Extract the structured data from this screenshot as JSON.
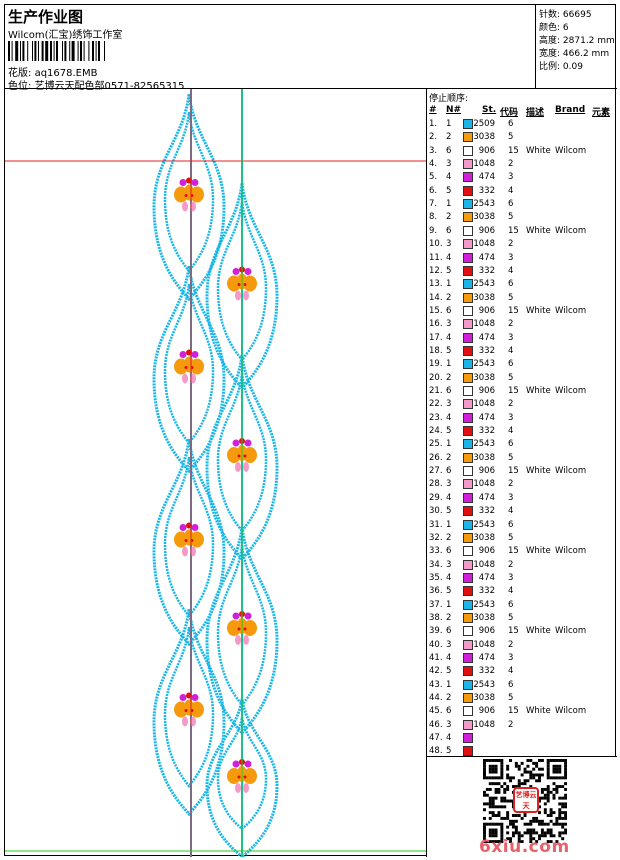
{
  "header": {
    "title": "生产作业图",
    "studio": "Wilcom(汇宝)绣饰工作室",
    "file_label": "花版:",
    "file_name": "aq1678.EMB",
    "color_label": "色位:",
    "color_text": "艺博云天配色部0571-82565315"
  },
  "stats": [
    {
      "label": "针数:",
      "value": "66695"
    },
    {
      "label": "颜色:",
      "value": "6"
    },
    {
      "label": "高度:",
      "value": "2871.2 mm"
    },
    {
      "label": "宽度:",
      "value": "466.2 mm"
    },
    {
      "label": "比例:",
      "value": "0.09"
    }
  ],
  "sequence": {
    "title": "停止顺序:",
    "headers": [
      "#",
      "N#",
      "St.",
      "代码",
      "描述",
      "Brand",
      "元素"
    ],
    "rows": [
      {
        "idx": "1.",
        "needle": "1",
        "code": "2509",
        "dm": "6",
        "desc": "",
        "brand": "",
        "color": "#1ab6e8"
      },
      {
        "idx": "2.",
        "needle": "2",
        "code": "3038",
        "dm": "5",
        "desc": "",
        "brand": "",
        "color": "#f59a0c"
      },
      {
        "idx": "3.",
        "needle": "6",
        "code": "906",
        "dm": "15",
        "desc": "White",
        "brand": "Wilcom",
        "color": "#ffffff"
      },
      {
        "idx": "4.",
        "needle": "3",
        "code": "1048",
        "dm": "2",
        "desc": "",
        "brand": "",
        "color": "#f49ac8"
      },
      {
        "idx": "5.",
        "needle": "4",
        "code": "474",
        "dm": "3",
        "desc": "",
        "brand": "",
        "color": "#d21fd8"
      },
      {
        "idx": "6.",
        "needle": "5",
        "code": "332",
        "dm": "4",
        "desc": "",
        "brand": "",
        "color": "#e01010"
      },
      {
        "idx": "7.",
        "needle": "1",
        "code": "2543",
        "dm": "6",
        "desc": "",
        "brand": "",
        "color": "#1ab6e8"
      },
      {
        "idx": "8.",
        "needle": "2",
        "code": "3038",
        "dm": "5",
        "desc": "",
        "brand": "",
        "color": "#f59a0c"
      },
      {
        "idx": "9.",
        "needle": "6",
        "code": "906",
        "dm": "15",
        "desc": "White",
        "brand": "Wilcom",
        "color": "#ffffff"
      },
      {
        "idx": "10.",
        "needle": "3",
        "code": "1048",
        "dm": "2",
        "desc": "",
        "brand": "",
        "color": "#f49ac8"
      },
      {
        "idx": "11.",
        "needle": "4",
        "code": "474",
        "dm": "3",
        "desc": "",
        "brand": "",
        "color": "#d21fd8"
      },
      {
        "idx": "12.",
        "needle": "5",
        "code": "332",
        "dm": "4",
        "desc": "",
        "brand": "",
        "color": "#e01010"
      },
      {
        "idx": "13.",
        "needle": "1",
        "code": "2543",
        "dm": "6",
        "desc": "",
        "brand": "",
        "color": "#1ab6e8"
      },
      {
        "idx": "14.",
        "needle": "2",
        "code": "3038",
        "dm": "5",
        "desc": "",
        "brand": "",
        "color": "#f59a0c"
      },
      {
        "idx": "15.",
        "needle": "6",
        "code": "906",
        "dm": "15",
        "desc": "White",
        "brand": "Wilcom",
        "color": "#ffffff"
      },
      {
        "idx": "16.",
        "needle": "3",
        "code": "1048",
        "dm": "2",
        "desc": "",
        "brand": "",
        "color": "#f49ac8"
      },
      {
        "idx": "17.",
        "needle": "4",
        "code": "474",
        "dm": "3",
        "desc": "",
        "brand": "",
        "color": "#d21fd8"
      },
      {
        "idx": "18.",
        "needle": "5",
        "code": "332",
        "dm": "4",
        "desc": "",
        "brand": "",
        "color": "#e01010"
      },
      {
        "idx": "19.",
        "needle": "1",
        "code": "2543",
        "dm": "6",
        "desc": "",
        "brand": "",
        "color": "#1ab6e8"
      },
      {
        "idx": "20.",
        "needle": "2",
        "code": "3038",
        "dm": "5",
        "desc": "",
        "brand": "",
        "color": "#f59a0c"
      },
      {
        "idx": "21.",
        "needle": "6",
        "code": "906",
        "dm": "15",
        "desc": "White",
        "brand": "Wilcom",
        "color": "#ffffff"
      },
      {
        "idx": "22.",
        "needle": "3",
        "code": "1048",
        "dm": "2",
        "desc": "",
        "brand": "",
        "color": "#f49ac8"
      },
      {
        "idx": "23.",
        "needle": "4",
        "code": "474",
        "dm": "3",
        "desc": "",
        "brand": "",
        "color": "#d21fd8"
      },
      {
        "idx": "24.",
        "needle": "5",
        "code": "332",
        "dm": "4",
        "desc": "",
        "brand": "",
        "color": "#e01010"
      },
      {
        "idx": "25.",
        "needle": "1",
        "code": "2543",
        "dm": "6",
        "desc": "",
        "brand": "",
        "color": "#1ab6e8"
      },
      {
        "idx": "26.",
        "needle": "2",
        "code": "3038",
        "dm": "5",
        "desc": "",
        "brand": "",
        "color": "#f59a0c"
      },
      {
        "idx": "27.",
        "needle": "6",
        "code": "906",
        "dm": "15",
        "desc": "White",
        "brand": "Wilcom",
        "color": "#ffffff"
      },
      {
        "idx": "28.",
        "needle": "3",
        "code": "1048",
        "dm": "2",
        "desc": "",
        "brand": "",
        "color": "#f49ac8"
      },
      {
        "idx": "29.",
        "needle": "4",
        "code": "474",
        "dm": "3",
        "desc": "",
        "brand": "",
        "color": "#d21fd8"
      },
      {
        "idx": "30.",
        "needle": "5",
        "code": "332",
        "dm": "4",
        "desc": "",
        "brand": "",
        "color": "#e01010"
      },
      {
        "idx": "31.",
        "needle": "1",
        "code": "2543",
        "dm": "6",
        "desc": "",
        "brand": "",
        "color": "#1ab6e8"
      },
      {
        "idx": "32.",
        "needle": "2",
        "code": "3038",
        "dm": "5",
        "desc": "",
        "brand": "",
        "color": "#f59a0c"
      },
      {
        "idx": "33.",
        "needle": "6",
        "code": "906",
        "dm": "15",
        "desc": "White",
        "brand": "Wilcom",
        "color": "#ffffff"
      },
      {
        "idx": "34.",
        "needle": "3",
        "code": "1048",
        "dm": "2",
        "desc": "",
        "brand": "",
        "color": "#f49ac8"
      },
      {
        "idx": "35.",
        "needle": "4",
        "code": "474",
        "dm": "3",
        "desc": "",
        "brand": "",
        "color": "#d21fd8"
      },
      {
        "idx": "36.",
        "needle": "5",
        "code": "332",
        "dm": "4",
        "desc": "",
        "brand": "",
        "color": "#e01010"
      },
      {
        "idx": "37.",
        "needle": "1",
        "code": "2543",
        "dm": "6",
        "desc": "",
        "brand": "",
        "color": "#1ab6e8"
      },
      {
        "idx": "38.",
        "needle": "2",
        "code": "3038",
        "dm": "5",
        "desc": "",
        "brand": "",
        "color": "#f59a0c"
      },
      {
        "idx": "39.",
        "needle": "6",
        "code": "906",
        "dm": "15",
        "desc": "White",
        "brand": "Wilcom",
        "color": "#ffffff"
      },
      {
        "idx": "40.",
        "needle": "3",
        "code": "1048",
        "dm": "2",
        "desc": "",
        "brand": "",
        "color": "#f49ac8"
      },
      {
        "idx": "41.",
        "needle": "4",
        "code": "474",
        "dm": "3",
        "desc": "",
        "brand": "",
        "color": "#d21fd8"
      },
      {
        "idx": "42.",
        "needle": "5",
        "code": "332",
        "dm": "4",
        "desc": "",
        "brand": "",
        "color": "#e01010"
      },
      {
        "idx": "43.",
        "needle": "1",
        "code": "2543",
        "dm": "6",
        "desc": "",
        "brand": "",
        "color": "#1ab6e8"
      },
      {
        "idx": "44.",
        "needle": "2",
        "code": "3038",
        "dm": "5",
        "desc": "",
        "brand": "",
        "color": "#f59a0c"
      },
      {
        "idx": "45.",
        "needle": "6",
        "code": "906",
        "dm": "15",
        "desc": "White",
        "brand": "Wilcom",
        "color": "#ffffff"
      },
      {
        "idx": "46.",
        "needle": "3",
        "code": "1048",
        "dm": "2",
        "desc": "",
        "brand": "",
        "color": "#f49ac8"
      },
      {
        "idx": "47.",
        "needle": "4",
        "code": "",
        "dm": "",
        "desc": "",
        "brand": "",
        "color": "#d21fd8"
      },
      {
        "idx": "48.",
        "needle": "5",
        "code": "",
        "dm": "",
        "desc": "",
        "brand": "",
        "color": "#e01010"
      }
    ]
  },
  "watermark": "6xiu.com",
  "seal_text": "艺博云天",
  "colors": {
    "outline": "#1ab6e8",
    "flower_orange": "#f59a0c",
    "flower_pink": "#f49ac8",
    "flower_magenta": "#d21fd8",
    "flower_red": "#e01010",
    "guide_red": "#e02020",
    "guide_green": "#22cc22"
  }
}
